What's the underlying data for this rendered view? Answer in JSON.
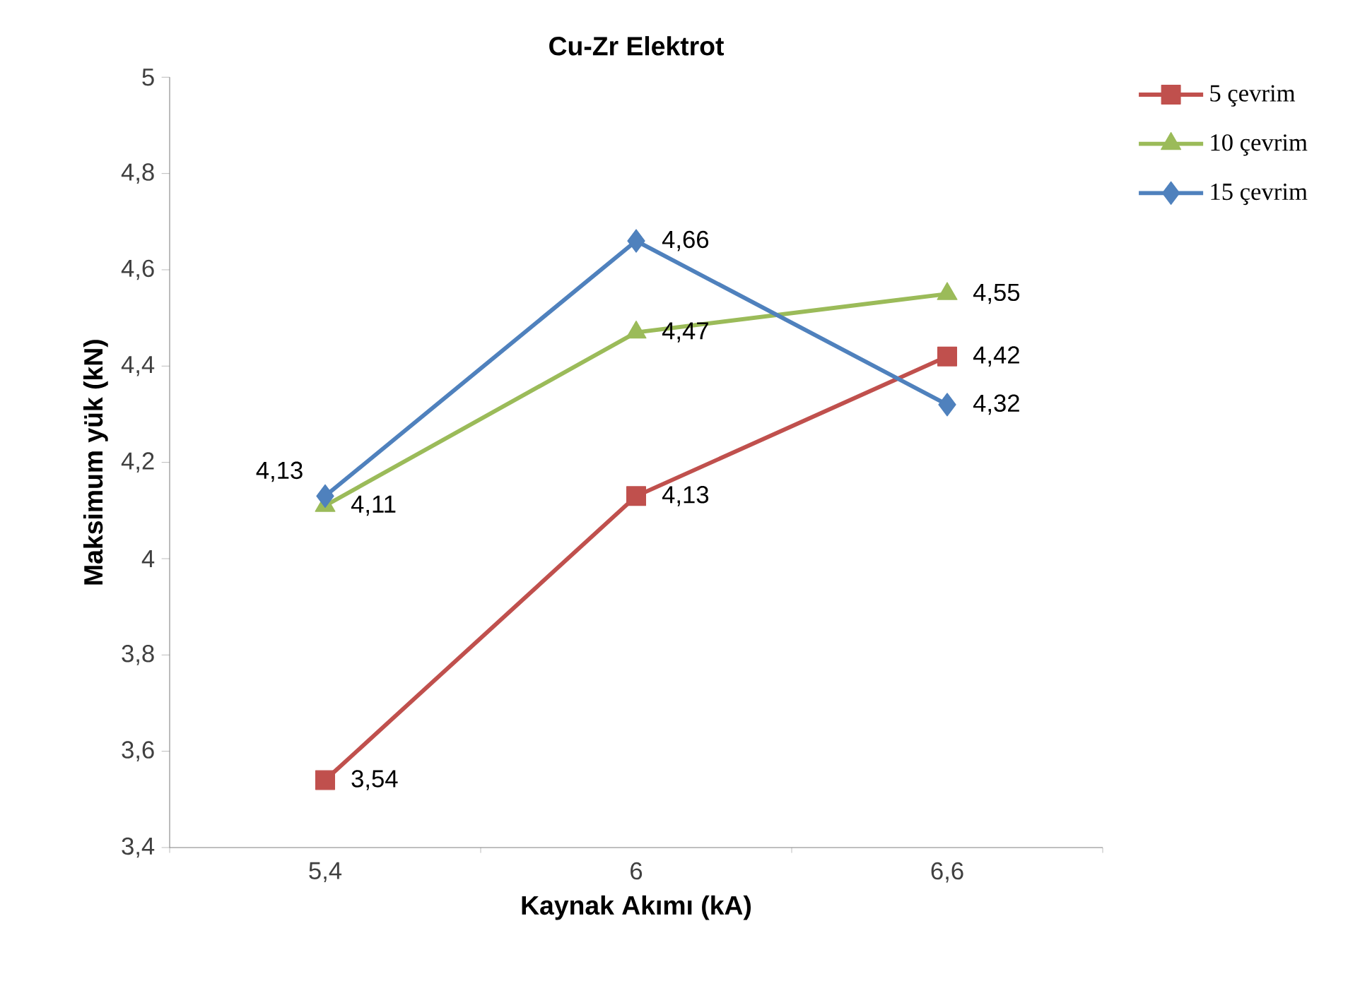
{
  "chart_data": {
    "type": "line",
    "title": "Cu-Zr Elektrot",
    "xlabel": "Kaynak Akımı (kA)",
    "ylabel": "Maksimum yük (kN)",
    "categories": [
      "5,4",
      "6",
      "6,6"
    ],
    "series": [
      {
        "name": "5  çevrim",
        "color": "#c0504d",
        "marker": "square",
        "values": [
          3.54,
          4.13,
          4.42
        ],
        "value_labels": [
          "3,54",
          "4,13",
          "4,42"
        ]
      },
      {
        "name": "10  çevrim",
        "color": "#9bbb59",
        "marker": "triangle",
        "values": [
          4.11,
          4.47,
          4.55
        ],
        "value_labels": [
          "4,11",
          "4,47",
          "4,55"
        ]
      },
      {
        "name": "15  çevrim",
        "color": "#4f81bd",
        "marker": "diamond",
        "values": [
          4.13,
          4.66,
          4.32
        ],
        "value_labels": [
          "4,13",
          "4,66",
          "4,32"
        ]
      }
    ],
    "ylim": [
      3.4,
      5
    ],
    "yticks": [
      {
        "value": 3.4,
        "label": "3,4"
      },
      {
        "value": 3.6,
        "label": "3,6"
      },
      {
        "value": 3.8,
        "label": "3,8"
      },
      {
        "value": 4,
        "label": "4"
      },
      {
        "value": 4.2,
        "label": "4,2"
      },
      {
        "value": 4.4,
        "label": "4,4"
      },
      {
        "value": 4.6,
        "label": "4,6"
      },
      {
        "value": 4.8,
        "label": "4,8"
      },
      {
        "value": 5,
        "label": "5"
      }
    ],
    "grid": false,
    "legend": "right",
    "line_style": "solid"
  }
}
